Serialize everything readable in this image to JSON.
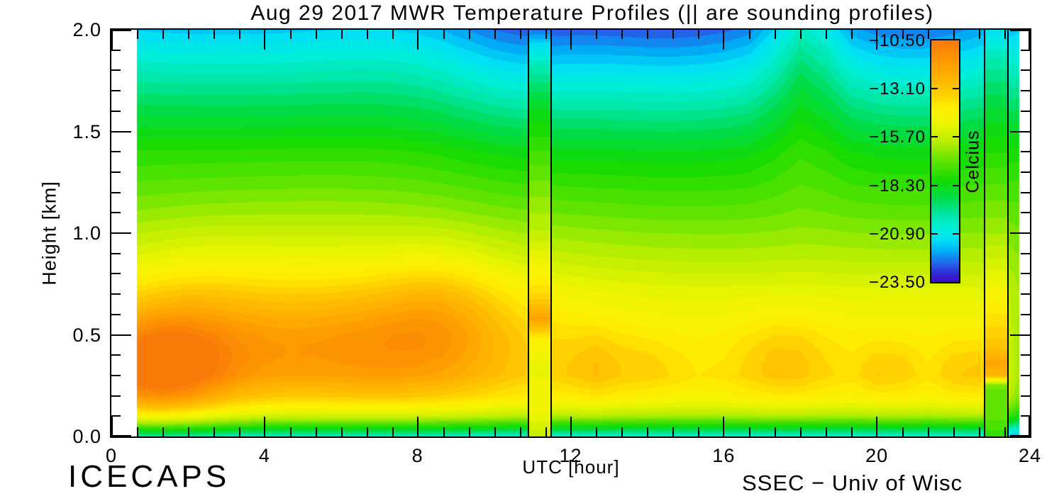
{
  "title": "Aug 29 2017 MWR Temperature Profiles (|| are sounding profiles)",
  "xlabel": "UTC [hour]",
  "ylabel": "Height [km]",
  "credit_left": "ICECAPS",
  "credit_right": "SSEC − Univ of Wisc",
  "colorbar": {
    "unit": "Celcius",
    "labels": [
      "−10.50",
      "−13.10",
      "−15.70",
      "−18.30",
      "−20.90",
      "−23.50"
    ]
  },
  "chart_data": {
    "type": "heatmap",
    "title": "Aug 29 2017 MWR Temperature Profiles (|| are sounding profiles)",
    "xlabel": "UTC [hour]",
    "ylabel": "Height [km]",
    "zlabel": "Celcius",
    "x_range": [
      0,
      24
    ],
    "y_range": [
      0.0,
      2.0
    ],
    "x_ticks_major": [
      0,
      4,
      8,
      12,
      16,
      20,
      24
    ],
    "x_tick_labels": [
      "0",
      "4",
      "8",
      "12",
      "16",
      "20",
      "24"
    ],
    "x_tick_minor_step_hours": 0.6667,
    "y_ticks_major": [
      0.0,
      0.5,
      1.0,
      1.5,
      2.0
    ],
    "y_tick_labels": [
      "0.0",
      "0.5",
      "1.0",
      "1.5",
      "2.0"
    ],
    "y_tick_minor_step_km": 0.1,
    "grid": false,
    "legend_position": "right-colorbar",
    "colorbar_range_c": [
      -10.5,
      -23.5
    ],
    "colorbar_tick_values": [
      -10.5,
      -13.1,
      -15.7,
      -18.3,
      -20.9,
      -23.5
    ],
    "contour_step_c": 0.325,
    "data_hour_range": [
      0.667,
      23.72
    ],
    "sounding_line_hours": [
      10.9,
      11.49,
      22.81,
      23.43
    ],
    "palette_stops": [
      [
        0.0,
        248,
        122,
        9
      ],
      [
        0.1,
        255,
        158,
        0
      ],
      [
        0.2,
        255,
        197,
        0
      ],
      [
        0.28,
        255,
        240,
        0
      ],
      [
        0.34,
        238,
        245,
        0
      ],
      [
        0.42,
        185,
        238,
        0
      ],
      [
        0.5,
        95,
        228,
        0
      ],
      [
        0.58,
        20,
        218,
        0
      ],
      [
        0.65,
        0,
        220,
        70
      ],
      [
        0.72,
        0,
        230,
        165
      ],
      [
        0.78,
        0,
        238,
        220
      ],
      [
        0.83,
        0,
        222,
        245
      ],
      [
        0.88,
        0,
        165,
        245
      ],
      [
        0.92,
        35,
        105,
        235
      ],
      [
        0.97,
        48,
        35,
        210
      ],
      [
        1.0,
        68,
        8,
        200
      ]
    ],
    "base_profile_c_by_km": [
      [
        0.0,
        -20.6
      ],
      [
        0.04,
        -18.6
      ],
      [
        0.1,
        -16.2
      ],
      [
        0.18,
        -14.6
      ],
      [
        0.3,
        -14.0
      ],
      [
        0.5,
        -14.35
      ],
      [
        0.7,
        -15.0
      ],
      [
        0.9,
        -16.0
      ],
      [
        1.1,
        -16.8
      ],
      [
        1.4,
        -17.8
      ],
      [
        1.6,
        -18.8
      ],
      [
        1.8,
        -19.9
      ],
      [
        2.0,
        -21.1
      ]
    ],
    "anomaly_blobs_h_z_amp_sh_sz": [
      [
        1.1,
        0.33,
        3.2,
        1.3,
        0.18
      ],
      [
        4.0,
        0.42,
        1.6,
        3.0,
        0.2
      ],
      [
        7.9,
        0.45,
        1.6,
        2.2,
        0.22
      ],
      [
        8.6,
        0.64,
        0.9,
        1.1,
        0.2
      ],
      [
        5.5,
        0.85,
        0.8,
        4.0,
        0.3
      ],
      [
        2.0,
        0.6,
        0.8,
        1.5,
        0.25
      ],
      [
        12.7,
        0.35,
        1.0,
        0.6,
        0.13
      ],
      [
        14.2,
        0.35,
        0.6,
        0.5,
        0.11
      ],
      [
        17.6,
        0.38,
        1.1,
        0.9,
        0.15
      ],
      [
        20.3,
        0.33,
        0.9,
        0.5,
        0.12
      ],
      [
        22.4,
        0.33,
        1.0,
        0.5,
        0.12
      ],
      [
        18.1,
        2.05,
        1.8,
        0.6,
        0.45
      ],
      [
        14.6,
        2.15,
        -1.6,
        2.8,
        0.55
      ],
      [
        10.4,
        2.1,
        -0.9,
        1.4,
        0.5
      ],
      [
        21.2,
        2.15,
        -1.2,
        1.7,
        0.55
      ],
      [
        3.0,
        2.2,
        -0.5,
        3.0,
        0.4
      ],
      [
        23.6,
        0.3,
        -2.6,
        0.22,
        0.35
      ]
    ],
    "sounding_columns": [
      {
        "h_range": [
          10.9,
          11.49
        ],
        "profile_c_by_km": [
          [
            0.0,
            -15.8
          ],
          [
            0.15,
            -14.6
          ],
          [
            0.35,
            -15.0
          ],
          [
            0.48,
            -14.2
          ],
          [
            0.58,
            -11.9
          ],
          [
            0.68,
            -13.4
          ],
          [
            0.8,
            -14.4
          ],
          [
            1.0,
            -15.8
          ],
          [
            1.3,
            -17.0
          ],
          [
            1.6,
            -18.4
          ],
          [
            1.8,
            -19.9
          ],
          [
            1.93,
            -21.3
          ],
          [
            2.0,
            -22.4
          ]
        ]
      },
      {
        "h_range": [
          22.81,
          23.43
        ],
        "profile_c_by_km": [
          [
            0.0,
            -17.8
          ],
          [
            0.06,
            -17.2
          ],
          [
            0.25,
            -16.8
          ],
          [
            0.3,
            -12.6
          ],
          [
            0.36,
            -12.1
          ],
          [
            0.45,
            -13.1
          ],
          [
            0.6,
            -13.9
          ],
          [
            0.8,
            -15.1
          ],
          [
            1.0,
            -16.2
          ],
          [
            1.3,
            -17.4
          ],
          [
            1.6,
            -18.7
          ],
          [
            1.85,
            -20.0
          ],
          [
            2.0,
            -21.3
          ]
        ]
      }
    ]
  }
}
